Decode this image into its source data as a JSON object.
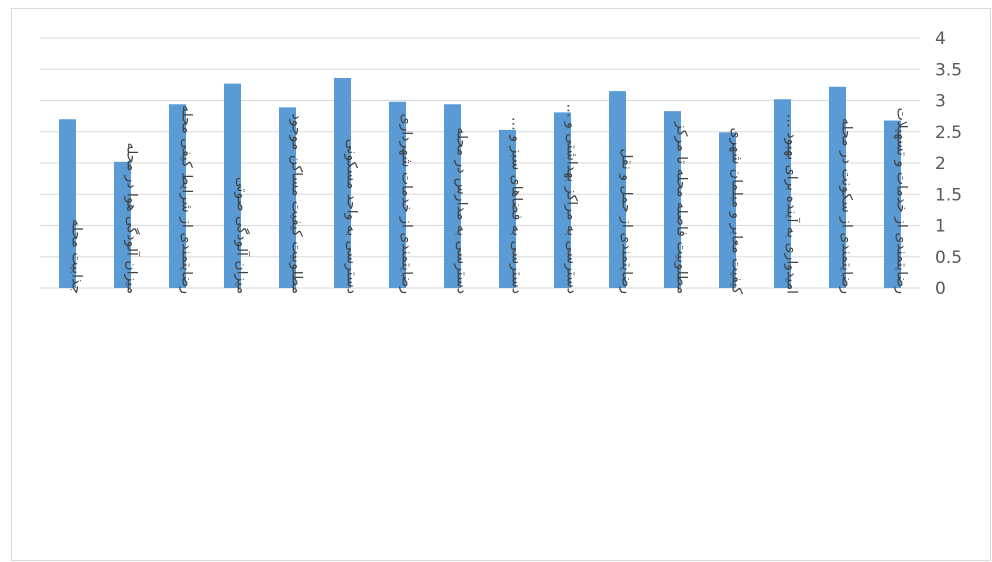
{
  "chart_data": {
    "type": "bar",
    "categories": [
      "جذابیت محله",
      "میزان آلودگی هوا در محله",
      "رضایتمندی از شرایط کیفی محله",
      "میزان آلودگی صوتی",
      "مطلوبیت کیفیت مساکن موجود",
      "دسترسی به واحد مسکونی",
      "رضایتمندی از خدمات شهرداری",
      "دسترسی به مدارس در محله",
      "دسترسی به فضاهای سبز و …",
      "دسترسی به مراکز بهداشتی و …",
      "رضایتمندی از حمل و نقل",
      "مطلوبیت فاصله محله تا مرکز",
      "کیفیت معابر و مبلمان شهری",
      "امیدواری به آینده برای بهبود …",
      "رضایتمندی از سکونت در محله",
      "رضایتمندی از خدمات و تسهیلات"
    ],
    "values": [
      2.7,
      2.02,
      2.94,
      3.27,
      2.89,
      3.36,
      2.98,
      2.94,
      2.53,
      2.81,
      3.15,
      2.83,
      2.49,
      3.02,
      3.22,
      2.68
    ],
    "yticks": [
      "0",
      "0.5",
      "1",
      "1.5",
      "2",
      "2.5",
      "3",
      "3.5",
      "4"
    ],
    "ylim": [
      0,
      4
    ],
    "y_axis_side": "right",
    "grid": true,
    "bar_color": "#5b9bd5",
    "grid_color": "#d9d9d9",
    "title": "",
    "xlabel": "",
    "ylabel": ""
  }
}
